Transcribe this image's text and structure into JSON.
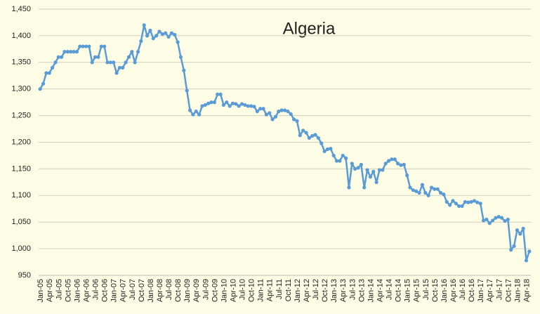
{
  "chart_data": {
    "type": "line",
    "title": "Algeria",
    "categories": [
      "Jan-05",
      null,
      null,
      "Apr-05",
      null,
      null,
      "Jul-05",
      null,
      null,
      "Oct-05",
      null,
      null,
      "Jan-06",
      null,
      null,
      "Apr-06",
      null,
      null,
      "Jul-06",
      null,
      null,
      "Oct-06",
      null,
      null,
      "Jan-07",
      null,
      null,
      "Apr-07",
      null,
      null,
      "Jul-07",
      null,
      null,
      "Oct-07",
      null,
      null,
      "Jan-08",
      null,
      null,
      "Apr-08",
      null,
      null,
      "Jul-08",
      null,
      null,
      "Oct-08",
      null,
      null,
      "Jan-09",
      null,
      null,
      "Apr-09",
      null,
      null,
      "Jul-09",
      null,
      null,
      "Oct-09",
      null,
      null,
      "Jan-10",
      null,
      null,
      "Apr-10",
      null,
      null,
      "Jul-10",
      null,
      null,
      "Oct-10",
      null,
      null,
      "Jan-11",
      null,
      null,
      "Apr-11",
      null,
      null,
      "Jul-11",
      null,
      null,
      "Oct-11",
      null,
      null,
      "Jan-12",
      null,
      null,
      "Apr-12",
      null,
      null,
      "Jul-12",
      null,
      null,
      "Oct-12",
      null,
      null,
      "Jan-13",
      null,
      null,
      "Apr-13",
      null,
      null,
      "Jul-13",
      null,
      null,
      "Oct-13",
      null,
      null,
      "Jan-14",
      null,
      null,
      "Apr-14",
      null,
      null,
      "Jul-14",
      null,
      null,
      "Oct-14",
      null,
      null,
      "Jan-15",
      null,
      null,
      "Apr-15",
      null,
      null,
      "Jul-15",
      null,
      null,
      "Oct-15",
      null,
      null,
      "Jan-16",
      null,
      null,
      "Apr-16",
      null,
      null,
      "Jul-16",
      null,
      null,
      "Oct-16",
      null,
      null,
      "Jan-17",
      null,
      null,
      "Apr-17",
      null,
      null,
      "Jul-17",
      null,
      null,
      "Oct-17",
      null,
      null,
      "Jan-18",
      null,
      null,
      "Apr-18",
      null
    ],
    "values": [
      1300,
      1310,
      1330,
      1330,
      1340,
      1350,
      1360,
      1360,
      1370,
      1370,
      1370,
      1370,
      1370,
      1380,
      1380,
      1380,
      1380,
      1350,
      1360,
      1360,
      1380,
      1380,
      1350,
      1350,
      1350,
      1330,
      1340,
      1340,
      1350,
      1360,
      1370,
      1350,
      1370,
      1390,
      1420,
      1400,
      1410,
      1395,
      1400,
      1408,
      1403,
      1405,
      1398,
      1405,
      1402,
      1388,
      1360,
      1335,
      1297,
      1260,
      1252,
      1258,
      1252,
      1268,
      1270,
      1273,
      1275,
      1275,
      1290,
      1290,
      1270,
      1275,
      1268,
      1273,
      1272,
      1268,
      1272,
      1270,
      1268,
      1268,
      1267,
      1258,
      1263,
      1263,
      1252,
      1255,
      1243,
      1248,
      1258,
      1260,
      1260,
      1258,
      1253,
      1243,
      1240,
      1213,
      1222,
      1218,
      1208,
      1212,
      1214,
      1208,
      1198,
      1183,
      1187,
      1188,
      1175,
      1165,
      1165,
      1175,
      1170,
      1115,
      1160,
      1150,
      1152,
      1158,
      1115,
      1148,
      1135,
      1145,
      1125,
      1148,
      1148,
      1160,
      1165,
      1168,
      1168,
      1160,
      1157,
      1158,
      1138,
      1115,
      1110,
      1108,
      1105,
      1120,
      1105,
      1100,
      1115,
      1112,
      1112,
      1105,
      1102,
      1088,
      1082,
      1090,
      1085,
      1080,
      1080,
      1088,
      1087,
      1088,
      1090,
      1087,
      1085,
      1053,
      1055,
      1048,
      1053,
      1058,
      1060,
      1058,
      1052,
      1055,
      998,
      1005,
      1035,
      1028,
      1038,
      978,
      995
    ],
    "color": "#5b9bd5",
    "ylim": [
      950,
      1450
    ],
    "yticks": [
      {
        "value": 950,
        "label": "950"
      },
      {
        "value": 1000,
        "label": "1,000"
      },
      {
        "value": 1050,
        "label": "1,050"
      },
      {
        "value": 1100,
        "label": "1,100"
      },
      {
        "value": 1150,
        "label": "1,150"
      },
      {
        "value": 1200,
        "label": "1,200"
      },
      {
        "value": 1250,
        "label": "1,250"
      },
      {
        "value": 1300,
        "label": "1,300"
      },
      {
        "value": 1350,
        "label": "1,350"
      },
      {
        "value": 1400,
        "label": "1,400"
      },
      {
        "value": 1450,
        "label": "1,450"
      }
    ],
    "grid": true
  }
}
